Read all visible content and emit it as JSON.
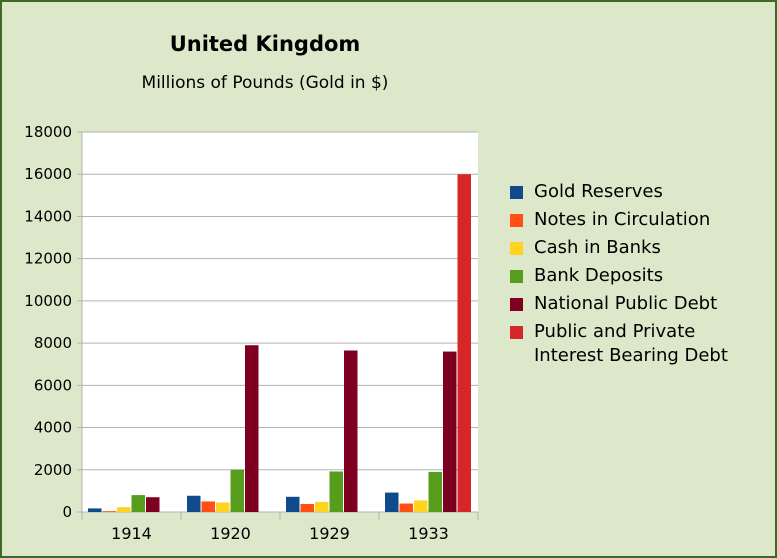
{
  "chart_data": {
    "type": "bar",
    "title": "United Kingdom",
    "subtitle": "Millions of Pounds (Gold in $)",
    "xlabel": "",
    "ylabel": "",
    "categories": [
      "1914",
      "1920",
      "1929",
      "1933"
    ],
    "ylim": [
      0,
      18000
    ],
    "yticks": [
      0,
      2000,
      4000,
      6000,
      8000,
      10000,
      12000,
      14000,
      16000,
      18000
    ],
    "grid": true,
    "legend_position": "right",
    "series": [
      {
        "name": "Gold Reserves",
        "color": "#0f4a8a",
        "values": [
          170,
          770,
          720,
          920
        ]
      },
      {
        "name": "Notes in Circulation",
        "color": "#ff4f14",
        "values": [
          40,
          500,
          380,
          400
        ]
      },
      {
        "name": "Cash in Banks",
        "color": "#ffd320",
        "values": [
          230,
          450,
          480,
          550
        ]
      },
      {
        "name": "Bank Deposits",
        "color": "#579d1c",
        "values": [
          800,
          2000,
          1920,
          1900
        ]
      },
      {
        "name": "National Public Debt",
        "color": "#7e0021",
        "values": [
          700,
          7900,
          7650,
          7600
        ]
      },
      {
        "name": "Public and Private Interest Bearing Debt",
        "color": "#d62728",
        "values": [
          0,
          0,
          0,
          16000
        ]
      }
    ]
  }
}
